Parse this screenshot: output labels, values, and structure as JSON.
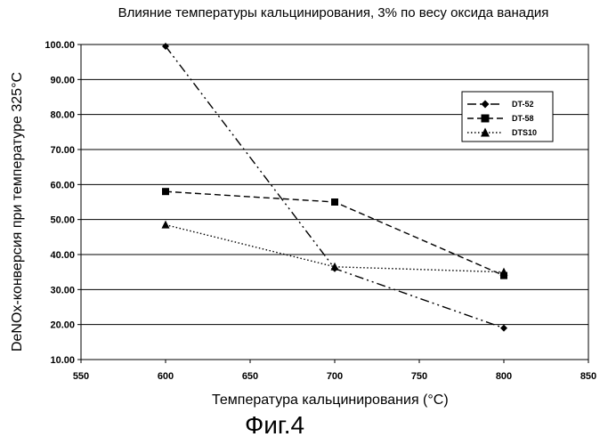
{
  "figure_label": "Фиг.4",
  "chart_data": {
    "type": "line",
    "title": "Влияние температуры кальцинирования, 3% по весу оксида ванадия",
    "xlabel": "Температура кальцинирования (°C)",
    "ylabel": "DeNOx-конверсия при температуре 325°C",
    "xlim": [
      550,
      850
    ],
    "ylim": [
      10,
      100
    ],
    "x_ticks": [
      "550",
      "600",
      "650",
      "700",
      "750",
      "800",
      "850"
    ],
    "y_ticks": [
      "10.00",
      "20.00",
      "30.00",
      "40.00",
      "50.00",
      "60.00",
      "70.00",
      "80.00",
      "90.00",
      "100.00"
    ],
    "grid": true,
    "legend_position": "right",
    "series": [
      {
        "name": "DT-52",
        "marker": "diamond",
        "line_style": "dash-dot-dot",
        "x": [
          600,
          700,
          800
        ],
        "y": [
          99.5,
          36.0,
          19.0
        ]
      },
      {
        "name": "DT-58",
        "marker": "square",
        "line_style": "dashed",
        "x": [
          600,
          700,
          800
        ],
        "y": [
          58.0,
          55.0,
          34.0
        ]
      },
      {
        "name": "DTS10",
        "marker": "triangle",
        "line_style": "dotted",
        "x": [
          600,
          700,
          800
        ],
        "y": [
          48.5,
          36.5,
          35.0
        ]
      }
    ]
  }
}
